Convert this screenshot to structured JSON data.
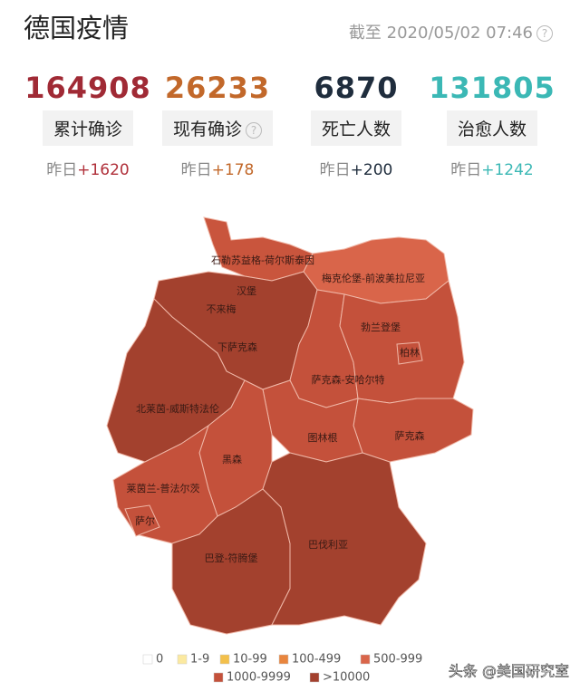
{
  "header": {
    "title": "德国疫情",
    "timestamp_label": "截至",
    "timestamp": "2020/05/02 07:46"
  },
  "stats": [
    {
      "value": 164908,
      "label": "累计确诊",
      "yesterday_label": "昨日",
      "delta": "+1620",
      "color": "#a02a35",
      "delta_color": "#b0303a"
    },
    {
      "value": 26233,
      "label": "现有确诊",
      "yesterday_label": "昨日",
      "delta": "+178",
      "color": "#c2682a",
      "delta_color": "#c2682a"
    },
    {
      "value": 6870,
      "label": "死亡人数",
      "yesterday_label": "昨日",
      "delta": "+200",
      "color": "#1f2d3d",
      "delta_color": "#1f2d3d"
    },
    {
      "value": 131805,
      "label": "治愈人数",
      "yesterday_label": "昨日",
      "delta": "+1242",
      "color": "#3bb8b5",
      "delta_color": "#3bb8b5"
    }
  ],
  "regions": [
    {
      "label": "石勒苏益格-荷尔斯泰因",
      "color": "#c9553d"
    },
    {
      "label": "梅克伦堡-前波美拉尼亚",
      "color": "#d9654a"
    },
    {
      "label": "汉堡",
      "color": "#c4513b"
    },
    {
      "label": "不来梅",
      "color": "#c4513b"
    },
    {
      "label": "下萨克森",
      "color": "#a3412e"
    },
    {
      "label": "北莱茵-威斯特法伦",
      "color": "#a3412e"
    },
    {
      "label": "萨克森-安哈尔特",
      "color": "#c4513b"
    },
    {
      "label": "勃兰登堡",
      "color": "#c4513b"
    },
    {
      "label": "柏林",
      "color": "#c4513b"
    },
    {
      "label": "萨克森",
      "color": "#c4513b"
    },
    {
      "label": "图林根",
      "color": "#c4513b"
    },
    {
      "label": "黑森",
      "color": "#c4513b"
    },
    {
      "label": "莱茵兰-普法尔茨",
      "color": "#c4513b"
    },
    {
      "label": "萨尔",
      "color": "#c4513b"
    },
    {
      "label": "巴登-符腾堡",
      "color": "#a3412e"
    },
    {
      "label": "巴伐利亚",
      "color": "#a3412e"
    }
  ],
  "legend": [
    {
      "label": "0",
      "color": "#ffffff"
    },
    {
      "label": "1-9",
      "color": "#fbe9a0"
    },
    {
      "label": "10-99",
      "color": "#f3c04b"
    },
    {
      "label": "100-499",
      "color": "#e8853e"
    },
    {
      "label": "500-999",
      "color": "#d9654a"
    },
    {
      "label": "1000-9999",
      "color": "#c4513b"
    },
    {
      "label": ">10000",
      "color": "#a3412e"
    }
  ],
  "watermark": "头条 @美国研究室"
}
